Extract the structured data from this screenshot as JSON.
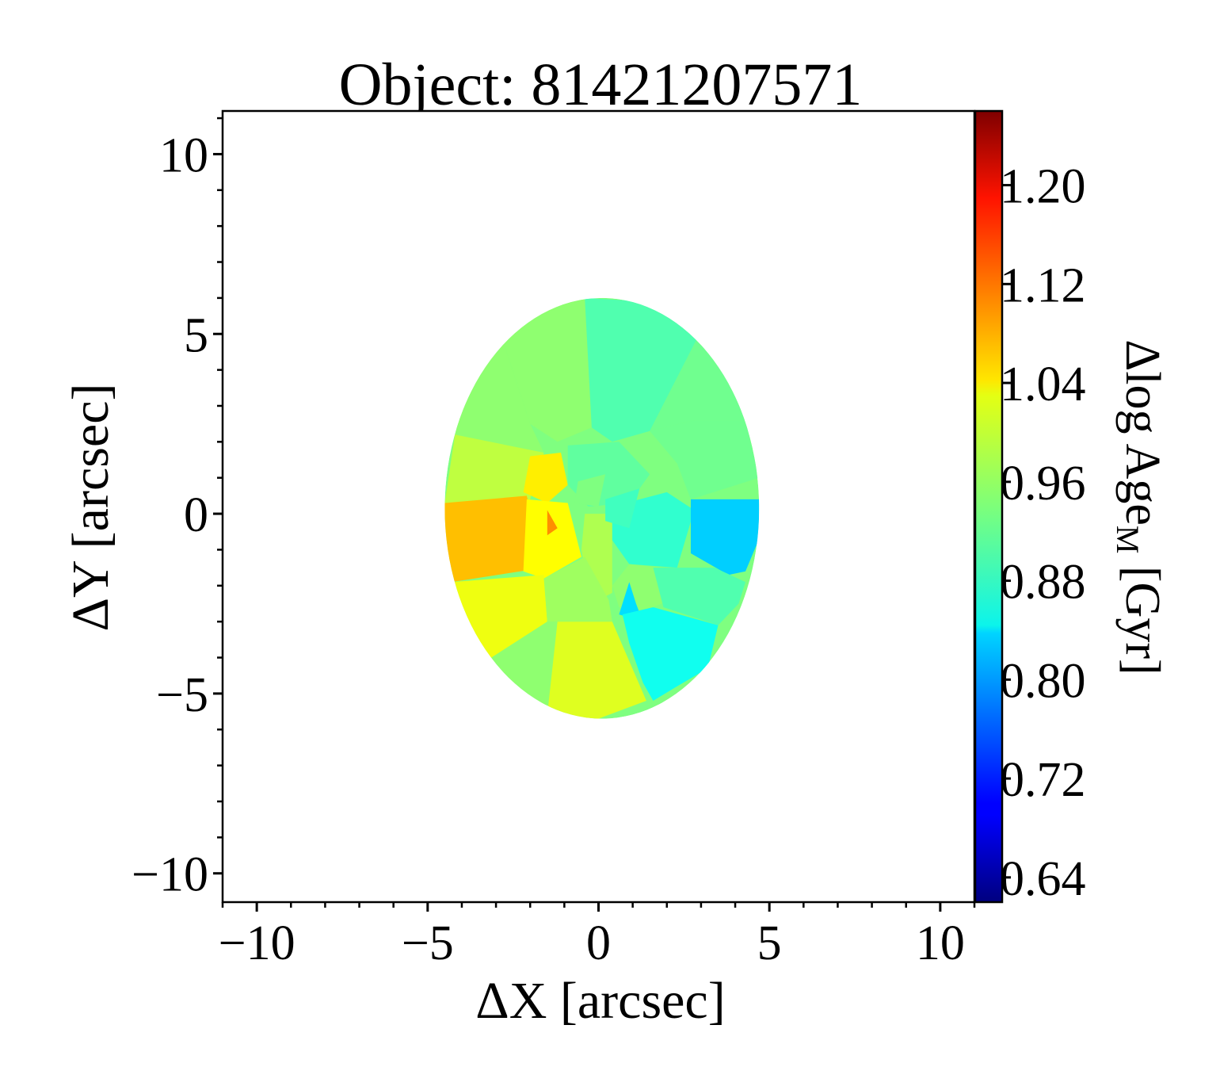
{
  "chart_data": {
    "type": "heatmap",
    "title": "Object: 81421207571",
    "xlabel": "ΔX [arcsec]",
    "ylabel": "ΔY [arcsec]",
    "colorbar_label_main": "Δlog Age",
    "colorbar_label_sub": "M",
    "colorbar_label_unit": "[Gyr]",
    "xlim": [
      -11,
      11
    ],
    "ylim": [
      -10.8,
      11.2
    ],
    "xticks": [
      -10,
      -5,
      0,
      5,
      10
    ],
    "xtick_labels": [
      "−10",
      "−5",
      "0",
      "5",
      "10"
    ],
    "yticks": [
      10,
      5,
      0,
      -5,
      -10
    ],
    "ytick_labels": [
      "10",
      "5",
      "0",
      "−5",
      "−10"
    ],
    "colorbar_range": [
      0.62,
      1.26
    ],
    "colorbar_ticks": [
      1.2,
      1.12,
      1.04,
      0.96,
      0.88,
      0.8,
      0.72,
      0.64
    ],
    "colorbar_tick_labels": [
      "1.20",
      "1.12",
      "1.04",
      "0.96",
      "0.88",
      "0.80",
      "0.72",
      "0.64"
    ],
    "colormap": "jet",
    "map_extent": {
      "x": [
        -4.5,
        4.7
      ],
      "y": [
        -5.7,
        6.0
      ]
    },
    "regions": [
      {
        "points": [
          [
            -3.0,
            5.4
          ],
          [
            -1.6,
            5.9
          ],
          [
            -0.4,
            6.0
          ],
          [
            -0.2,
            2.4
          ],
          [
            -1.2,
            2.0
          ],
          [
            -2.0,
            2.5
          ]
        ],
        "value": 0.95
      },
      {
        "points": [
          [
            -0.4,
            6.0
          ],
          [
            1.4,
            5.9
          ],
          [
            2.9,
            4.9
          ],
          [
            1.5,
            2.3
          ],
          [
            0.4,
            2.0
          ],
          [
            -0.2,
            2.4
          ]
        ],
        "value": 0.91
      },
      {
        "points": [
          [
            2.9,
            4.9
          ],
          [
            3.9,
            3.9
          ],
          [
            4.3,
            2.6
          ],
          [
            2.8,
            2.6
          ],
          [
            1.5,
            2.3
          ]
        ],
        "value": 0.93
      },
      {
        "points": [
          [
            -3.0,
            5.4
          ],
          [
            -2.0,
            2.5
          ],
          [
            -1.6,
            1.7
          ],
          [
            -4.2,
            2.2
          ],
          [
            -3.8,
            3.8
          ]
        ],
        "value": 0.95
      },
      {
        "points": [
          [
            -4.2,
            2.2
          ],
          [
            -1.6,
            1.7
          ],
          [
            -2.0,
            0.4
          ],
          [
            -4.5,
            0.3
          ]
        ],
        "value": 0.98
      },
      {
        "points": [
          [
            1.5,
            2.3
          ],
          [
            2.8,
            2.6
          ],
          [
            4.3,
            2.6
          ],
          [
            4.7,
            1.0
          ],
          [
            2.7,
            0.4
          ],
          [
            2.3,
            1.4
          ]
        ],
        "value": 0.93
      },
      {
        "points": [
          [
            -2.0,
            1.6
          ],
          [
            -1.1,
            1.7
          ],
          [
            -0.9,
            0.8
          ],
          [
            -1.5,
            0.3
          ],
          [
            -2.2,
            0.6
          ]
        ],
        "value": 1.03
      },
      {
        "points": [
          [
            -4.5,
            0.3
          ],
          [
            -2.1,
            0.5
          ],
          [
            -1.6,
            -1.5
          ],
          [
            -4.3,
            -1.9
          ],
          [
            -4.5,
            -1.6
          ]
        ],
        "value": 1.06
      },
      {
        "points": [
          [
            -2.1,
            0.4
          ],
          [
            -0.9,
            0.3
          ],
          [
            -0.5,
            -1.2
          ],
          [
            -1.6,
            -1.8
          ],
          [
            -2.2,
            -1.6
          ]
        ],
        "value": 1.02
      },
      {
        "points": [
          [
            -1.5,
            0.1
          ],
          [
            -1.2,
            -0.4
          ],
          [
            -1.5,
            -0.6
          ]
        ],
        "value": 1.09
      },
      {
        "points": [
          [
            -0.9,
            1.9
          ],
          [
            0.6,
            2.0
          ],
          [
            1.5,
            1.1
          ],
          [
            0.9,
            0.3
          ],
          [
            -0.3,
            0.2
          ],
          [
            -0.9,
            0.8
          ]
        ],
        "value": 0.92
      },
      {
        "points": [
          [
            0.4,
            0.2
          ],
          [
            2.0,
            0.6
          ],
          [
            2.8,
            0.1
          ],
          [
            2.3,
            -1.5
          ],
          [
            0.9,
            -1.4
          ],
          [
            0.3,
            -0.6
          ]
        ],
        "value": 0.89
      },
      {
        "points": [
          [
            2.7,
            0.4
          ],
          [
            4.7,
            0.4
          ],
          [
            4.7,
            -0.7
          ],
          [
            4.3,
            -1.6
          ],
          [
            3.8,
            -1.7
          ],
          [
            2.7,
            -1.1
          ]
        ],
        "value": 0.83
      },
      {
        "points": [
          [
            -4.3,
            -1.9
          ],
          [
            -1.6,
            -1.7
          ],
          [
            -1.5,
            -3.0
          ],
          [
            -3.3,
            -4.1
          ],
          [
            -4.0,
            -3.2
          ]
        ],
        "value": 1.01
      },
      {
        "points": [
          [
            -0.4,
            0.0
          ],
          [
            0.4,
            0.0
          ],
          [
            0.4,
            -2.2
          ],
          [
            -0.2,
            -2.5
          ],
          [
            -0.5,
            -1.0
          ]
        ],
        "value": 0.97
      },
      {
        "points": [
          [
            -1.6,
            -1.8
          ],
          [
            -0.4,
            -1.2
          ],
          [
            0.3,
            -2.4
          ],
          [
            0.4,
            -3.0
          ],
          [
            -1.2,
            -3.0
          ],
          [
            -1.5,
            -3.0
          ]
        ],
        "value": 0.96
      },
      {
        "points": [
          [
            -3.3,
            -4.1
          ],
          [
            -1.5,
            -3.0
          ],
          [
            -0.4,
            -3.0
          ],
          [
            -1.0,
            -5.7
          ],
          [
            -2.2,
            -5.1
          ],
          [
            -3.4,
            -4.5
          ]
        ],
        "value": 0.95
      },
      {
        "points": [
          [
            -1.2,
            -3.0
          ],
          [
            0.4,
            -3.0
          ],
          [
            1.4,
            -5.2
          ],
          [
            0.0,
            -5.7
          ],
          [
            -1.5,
            -5.6
          ]
        ],
        "value": 1.0
      },
      {
        "points": [
          [
            0.4,
            -2.0
          ],
          [
            0.9,
            -1.4
          ],
          [
            1.9,
            -1.5
          ],
          [
            2.1,
            -2.4
          ],
          [
            1.1,
            -2.8
          ],
          [
            0.6,
            -2.6
          ]
        ],
        "value": 0.95
      },
      {
        "points": [
          [
            0.9,
            -1.9
          ],
          [
            1.1,
            -2.5
          ],
          [
            1.3,
            -3.0
          ],
          [
            0.6,
            -2.8
          ]
        ],
        "value": 0.84
      },
      {
        "points": [
          [
            1.6,
            -1.5
          ],
          [
            3.4,
            -1.5
          ],
          [
            4.3,
            -1.9
          ],
          [
            4.1,
            -2.5
          ],
          [
            3.5,
            -3.1
          ],
          [
            1.9,
            -2.6
          ]
        ],
        "value": 0.91
      },
      {
        "points": [
          [
            0.7,
            -2.8
          ],
          [
            1.6,
            -2.6
          ],
          [
            3.5,
            -3.1
          ],
          [
            3.2,
            -4.3
          ],
          [
            2.3,
            -4.8
          ],
          [
            1.6,
            -5.2
          ],
          [
            1.3,
            -4.7
          ],
          [
            0.9,
            -3.6
          ]
        ],
        "value": 0.87
      },
      {
        "points": [
          [
            -0.6,
            0.9
          ],
          [
            0.2,
            1.1
          ],
          [
            0.0,
            0.2
          ],
          [
            -0.7,
            0.3
          ]
        ],
        "value": 0.94
      },
      {
        "points": [
          [
            0.2,
            0.4
          ],
          [
            1.2,
            0.7
          ],
          [
            0.9,
            -0.4
          ],
          [
            0.2,
            -0.2
          ]
        ],
        "value": 0.9
      }
    ]
  }
}
